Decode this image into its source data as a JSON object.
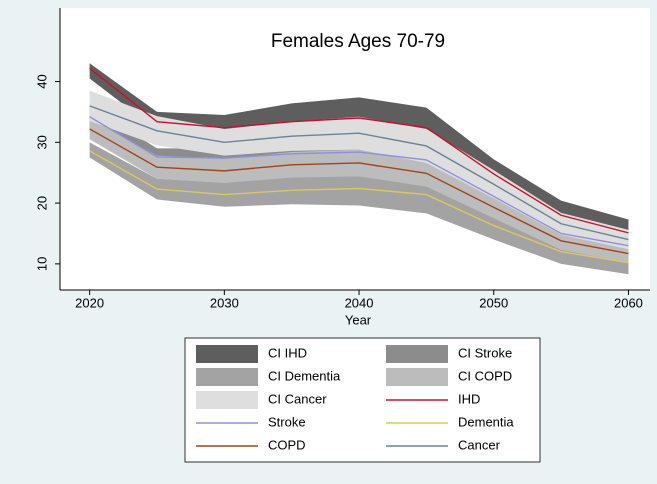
{
  "chart_data": {
    "type": "line",
    "title": "Females Ages 70-79",
    "x_label": "Year",
    "x": [
      2020,
      2025,
      2030,
      2035,
      2040,
      2045,
      2050,
      2055,
      2060
    ],
    "xlim": [
      2017.8,
      2061.6
    ],
    "xticks": [
      2020,
      2030,
      2040,
      2050,
      2060
    ],
    "ylim": [
      5.7,
      52.1
    ],
    "yticks": [
      10,
      20,
      30,
      40
    ],
    "bands": [
      {
        "name": "CI IHD",
        "color": "#5e5e5e",
        "lower": [
          40.5,
          32,
          31.5,
          32,
          32.5,
          31,
          23,
          16.5,
          13.8
        ],
        "upper": [
          43,
          35,
          34.5,
          36.4,
          37.4,
          35.7,
          27.2,
          20.4,
          17.3
        ]
      },
      {
        "name": "CI Stroke",
        "color": "#8c8c8c",
        "lower": [
          32.5,
          26.2,
          25.8,
          26.5,
          26.8,
          25.4,
          19.6,
          13.6,
          11.6
        ],
        "upper": [
          36,
          29,
          29,
          29.7,
          30,
          28.8,
          22.6,
          16.4,
          14.4
        ]
      },
      {
        "name": "CI Dementia",
        "color": "#a3a3a3",
        "lower": [
          27.5,
          20.6,
          19.4,
          19.8,
          19.6,
          18.3,
          14,
          10,
          8.3
        ],
        "upper": [
          30,
          24,
          23.4,
          24.3,
          25.2,
          24.5,
          18.6,
          14,
          12.1
        ]
      },
      {
        "name": "CI COPD",
        "color": "#bcbcbc",
        "lower": [
          30.5,
          24,
          23.3,
          24.2,
          24.4,
          22.7,
          17.5,
          12.3,
          10.2
        ],
        "upper": [
          34,
          27.8,
          27.3,
          28.4,
          28.8,
          27.1,
          21.1,
          15.3,
          13.2
        ]
      },
      {
        "name": "CI Cancer",
        "color": "#dedede",
        "lower": [
          33.5,
          29.5,
          27.8,
          28.6,
          28.8,
          26.6,
          20.8,
          14.8,
          12.4
        ],
        "upper": [
          38.5,
          34.3,
          32.2,
          33.4,
          34.2,
          32.2,
          25.4,
          18.4,
          15.6
        ]
      }
    ],
    "series": [
      {
        "name": "IHD",
        "color": "#c8102e",
        "values": [
          42.2,
          33.4,
          32.4,
          33.4,
          34,
          32.4,
          24.8,
          18,
          15.1
        ]
      },
      {
        "name": "Stroke",
        "color": "#8f8fe0",
        "values": [
          34.2,
          27.6,
          27.4,
          28.1,
          28.4,
          27.1,
          21.1,
          15,
          13
        ]
      },
      {
        "name": "Dementia",
        "color": "#d8c860",
        "values": [
          28.6,
          22.3,
          21.4,
          22.1,
          22.4,
          21.4,
          16.3,
          12,
          10.2
        ]
      },
      {
        "name": "COPD",
        "color": "#a0441c",
        "values": [
          32.2,
          25.9,
          25.3,
          26.3,
          26.6,
          24.9,
          19.3,
          13.8,
          11.7
        ]
      },
      {
        "name": "Cancer",
        "color": "#6b8394",
        "values": [
          36,
          31.9,
          30,
          31,
          31.5,
          29.4,
          23.1,
          16.6,
          14
        ]
      }
    ]
  }
}
